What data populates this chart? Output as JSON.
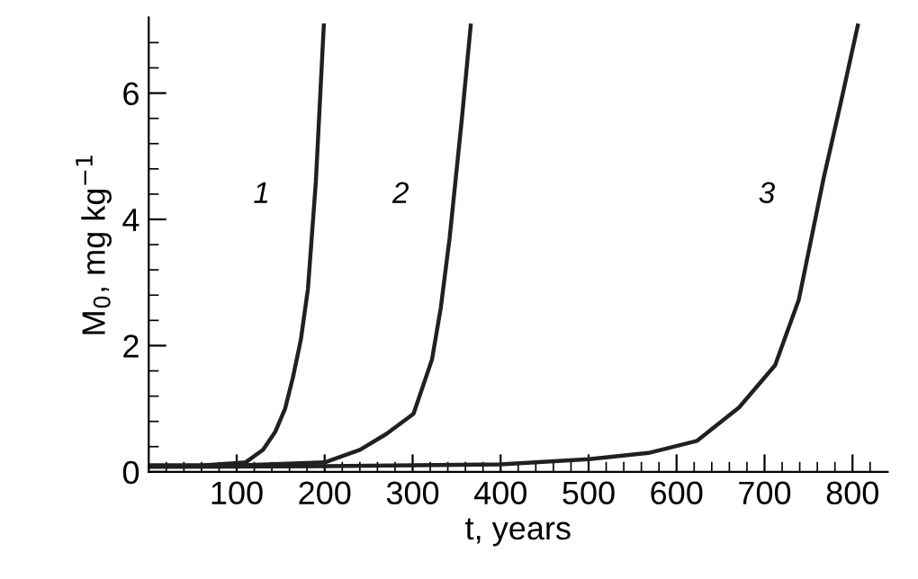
{
  "chart_data": {
    "type": "line",
    "xlabel": "t, years",
    "ylabel": "M$_{0}$, mg kg$^{−1}$",
    "xlim": [
      0,
      840
    ],
    "ylim": [
      0,
      7.2
    ],
    "xticks": [
      {
        "value": 20,
        "label": null
      },
      {
        "value": 40,
        "label": null
      },
      {
        "value": 60,
        "label": null
      },
      {
        "value": 80,
        "label": null
      },
      100,
      {
        "value": 120,
        "label": null
      },
      {
        "value": 140,
        "label": null
      },
      {
        "value": 160,
        "label": null
      },
      {
        "value": 180,
        "label": null
      },
      200,
      {
        "value": 220,
        "label": null
      },
      {
        "value": 240,
        "label": null
      },
      {
        "value": 260,
        "label": null
      },
      {
        "value": 280,
        "label": null
      },
      300,
      {
        "value": 320,
        "label": null
      },
      {
        "value": 340,
        "label": null
      },
      {
        "value": 360,
        "label": null
      },
      {
        "value": 380,
        "label": null
      },
      400,
      {
        "value": 420,
        "label": null
      },
      {
        "value": 440,
        "label": null
      },
      {
        "value": 460,
        "label": null
      },
      {
        "value": 480,
        "label": null
      },
      500,
      {
        "value": 520,
        "label": null
      },
      {
        "value": 540,
        "label": null
      },
      {
        "value": 560,
        "label": null
      },
      {
        "value": 580,
        "label": null
      },
      600,
      {
        "value": 620,
        "label": null
      },
      {
        "value": 640,
        "label": null
      },
      {
        "value": 660,
        "label": null
      },
      {
        "value": 680,
        "label": null
      },
      700,
      {
        "value": 720,
        "label": null
      },
      {
        "value": 740,
        "label": null
      },
      {
        "value": 760,
        "label": null
      },
      {
        "value": 780,
        "label": null
      },
      800,
      {
        "value": 820,
        "label": null
      }
    ],
    "yticks": [
      0,
      {
        "value": 0.4,
        "label": null
      },
      {
        "value": 0.8,
        "label": null
      },
      {
        "value": 1.2,
        "label": null
      },
      {
        "value": 1.6,
        "label": null
      },
      2,
      {
        "value": 2.4,
        "label": null
      },
      {
        "value": 2.8,
        "label": null
      },
      {
        "value": 3.2,
        "label": null
      },
      {
        "value": 3.6,
        "label": null
      },
      4,
      {
        "value": 4.4,
        "label": null
      },
      {
        "value": 4.8,
        "label": null
      },
      {
        "value": 5.2,
        "label": null
      },
      {
        "value": 5.6,
        "label": null
      },
      6,
      {
        "value": 6.4,
        "label": null
      },
      {
        "value": 6.8,
        "label": null
      }
    ],
    "grid": false,
    "legend": false,
    "marker": "none",
    "line_style": "solid",
    "series": [
      {
        "name": "1",
        "color": "#231f20",
        "x": [
          0,
          60,
          110,
          130,
          144,
          155,
          164,
          173,
          181,
          190,
          199
        ],
        "values": [
          0.1,
          0.1,
          0.15,
          0.35,
          0.64,
          1.0,
          1.5,
          2.1,
          2.9,
          4.6,
          7.07
        ]
      },
      {
        "name": "2",
        "color": "#231f20",
        "x": [
          0,
          100,
          200,
          240,
          270,
          301,
          322,
          332,
          342,
          356,
          366
        ],
        "values": [
          0.1,
          0.1,
          0.15,
          0.35,
          0.6,
          0.92,
          1.78,
          2.6,
          3.7,
          5.6,
          7.07
        ]
      },
      {
        "name": "3",
        "color": "#231f20",
        "x": [
          0,
          200,
          400,
          500,
          568,
          623,
          671,
          712,
          739,
          767,
          787,
          806
        ],
        "values": [
          0.08,
          0.09,
          0.12,
          0.2,
          0.3,
          0.49,
          1.02,
          1.69,
          2.73,
          4.64,
          5.87,
          7.07
        ]
      }
    ]
  }
}
